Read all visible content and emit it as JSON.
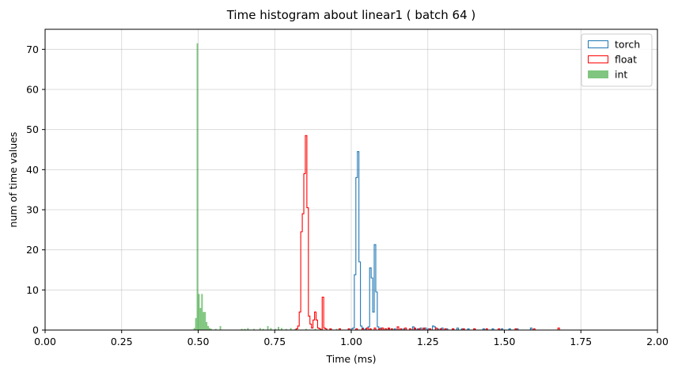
{
  "chart_data": {
    "type": "histogram",
    "title": "Time histogram about linear1 ( batch 64 )",
    "xlabel": "Time (ms)",
    "ylabel": "num of time values",
    "xlim": [
      0,
      2
    ],
    "ylim": [
      0,
      75
    ],
    "xticks": [
      "0.00",
      "0.25",
      "0.50",
      "0.75",
      "1.00",
      "1.25",
      "1.50",
      "1.75",
      "2.00"
    ],
    "xtick_values": [
      0,
      0.25,
      0.5,
      0.75,
      1.0,
      1.25,
      1.5,
      1.75,
      2.0
    ],
    "yticks": [
      "0",
      "10",
      "20",
      "30",
      "40",
      "50",
      "60",
      "70"
    ],
    "ytick_values": [
      0,
      10,
      20,
      30,
      40,
      50,
      60,
      70
    ],
    "grid": true,
    "legend_position": "top-right",
    "series": [
      {
        "name": "torch",
        "style": "step",
        "color": "#1f77b4",
        "bins": [
          [
            1.0,
            1.005,
            0.3
          ],
          [
            1.005,
            1.01,
            0.5
          ],
          [
            1.01,
            1.015,
            13.8
          ],
          [
            1.015,
            1.02,
            38.0
          ],
          [
            1.02,
            1.025,
            44.5
          ],
          [
            1.025,
            1.03,
            17.0
          ],
          [
            1.03,
            1.035,
            1.0
          ],
          [
            1.035,
            1.04,
            0.5
          ],
          [
            1.04,
            1.045,
            0.0
          ],
          [
            1.045,
            1.05,
            0.3
          ],
          [
            1.05,
            1.055,
            0.5
          ],
          [
            1.055,
            1.06,
            0.8
          ],
          [
            1.06,
            1.065,
            15.5
          ],
          [
            1.065,
            1.07,
            13.0
          ],
          [
            1.07,
            1.075,
            4.5
          ],
          [
            1.075,
            1.08,
            21.3
          ],
          [
            1.08,
            1.085,
            9.5
          ],
          [
            1.085,
            1.09,
            0.8
          ],
          [
            1.09,
            1.095,
            0.3
          ],
          [
            1.095,
            1.1,
            0.5
          ],
          [
            1.12,
            1.125,
            0.3
          ],
          [
            1.14,
            1.145,
            0.3
          ],
          [
            1.17,
            1.175,
            0.3
          ],
          [
            1.2,
            1.205,
            0.8
          ],
          [
            1.205,
            1.21,
            0.3
          ],
          [
            1.215,
            1.22,
            0.3
          ],
          [
            1.225,
            1.23,
            0.5
          ],
          [
            1.235,
            1.24,
            0.3
          ],
          [
            1.24,
            1.245,
            0.5
          ],
          [
            1.25,
            1.255,
            0.3
          ],
          [
            1.265,
            1.27,
            1.0
          ],
          [
            1.27,
            1.275,
            0.8
          ],
          [
            1.28,
            1.285,
            0.3
          ],
          [
            1.295,
            1.3,
            0.5
          ],
          [
            1.31,
            1.315,
            0.3
          ],
          [
            1.33,
            1.335,
            0.3
          ],
          [
            1.345,
            1.35,
            0.5
          ],
          [
            1.36,
            1.365,
            0.3
          ],
          [
            1.38,
            1.385,
            0.3
          ],
          [
            1.4,
            1.405,
            0.3
          ],
          [
            1.43,
            1.435,
            0.3
          ],
          [
            1.46,
            1.465,
            0.3
          ],
          [
            1.49,
            1.495,
            0.3
          ],
          [
            1.515,
            1.52,
            0.3
          ],
          [
            1.54,
            1.545,
            0.3
          ],
          [
            1.585,
            1.59,
            0.5
          ]
        ]
      },
      {
        "name": "float",
        "style": "step",
        "color": "#ff0000",
        "bins": [
          [
            0.82,
            0.825,
            0.3
          ],
          [
            0.825,
            0.83,
            1.0
          ],
          [
            0.83,
            0.835,
            4.5
          ],
          [
            0.835,
            0.84,
            24.5
          ],
          [
            0.84,
            0.845,
            29.0
          ],
          [
            0.845,
            0.85,
            39.0
          ],
          [
            0.85,
            0.855,
            48.5
          ],
          [
            0.855,
            0.86,
            30.5
          ],
          [
            0.86,
            0.865,
            3.5
          ],
          [
            0.865,
            0.87,
            1.5
          ],
          [
            0.87,
            0.875,
            0.5
          ],
          [
            0.875,
            0.88,
            2.5
          ],
          [
            0.88,
            0.885,
            4.5
          ],
          [
            0.885,
            0.89,
            2.5
          ],
          [
            0.89,
            0.895,
            0.5
          ],
          [
            0.895,
            0.9,
            0.3
          ],
          [
            0.9,
            0.905,
            0.0
          ],
          [
            0.905,
            0.91,
            8.2
          ],
          [
            0.91,
            0.915,
            0.5
          ],
          [
            0.915,
            0.92,
            0.3
          ],
          [
            0.92,
            0.925,
            0.0
          ],
          [
            0.93,
            0.935,
            0.3
          ],
          [
            0.96,
            0.965,
            0.3
          ],
          [
            0.99,
            0.995,
            0.3
          ],
          [
            1.015,
            1.02,
            0.3
          ],
          [
            1.035,
            1.04,
            0.3
          ],
          [
            1.05,
            1.055,
            0.5
          ],
          [
            1.06,
            1.065,
            0.3
          ],
          [
            1.075,
            1.08,
            0.5
          ],
          [
            1.09,
            1.095,
            0.3
          ],
          [
            1.1,
            1.105,
            0.5
          ],
          [
            1.11,
            1.115,
            0.3
          ],
          [
            1.12,
            1.125,
            0.5
          ],
          [
            1.13,
            1.135,
            0.3
          ],
          [
            1.15,
            1.155,
            0.8
          ],
          [
            1.16,
            1.165,
            0.3
          ],
          [
            1.175,
            1.18,
            0.5
          ],
          [
            1.19,
            1.195,
            0.3
          ],
          [
            1.205,
            1.21,
            0.5
          ],
          [
            1.22,
            1.225,
            0.3
          ],
          [
            1.235,
            1.24,
            0.5
          ],
          [
            1.255,
            1.26,
            0.3
          ],
          [
            1.275,
            1.28,
            0.5
          ],
          [
            1.29,
            1.295,
            0.3
          ],
          [
            1.305,
            1.31,
            0.3
          ],
          [
            1.33,
            1.335,
            0.3
          ],
          [
            1.365,
            1.37,
            0.3
          ],
          [
            1.4,
            1.405,
            0.3
          ],
          [
            1.44,
            1.445,
            0.3
          ],
          [
            1.48,
            1.485,
            0.3
          ],
          [
            1.535,
            1.54,
            0.3
          ],
          [
            1.595,
            1.6,
            0.3
          ],
          [
            1.675,
            1.68,
            0.5
          ]
        ]
      },
      {
        "name": "int",
        "style": "filled",
        "color": "#2ca02c",
        "opacity": 0.6,
        "bins": [
          [
            0.485,
            0.49,
            0.5
          ],
          [
            0.49,
            0.495,
            3.0
          ],
          [
            0.495,
            0.5,
            71.5
          ],
          [
            0.5,
            0.505,
            9.0
          ],
          [
            0.505,
            0.51,
            5.5
          ],
          [
            0.51,
            0.515,
            9.0
          ],
          [
            0.515,
            0.52,
            4.5
          ],
          [
            0.52,
            0.525,
            4.5
          ],
          [
            0.525,
            0.53,
            2.0
          ],
          [
            0.53,
            0.535,
            1.0
          ],
          [
            0.535,
            0.54,
            0.5
          ],
          [
            0.54,
            0.545,
            0.3
          ],
          [
            0.555,
            0.56,
            0.3
          ],
          [
            0.57,
            0.575,
            1.0
          ],
          [
            0.64,
            0.645,
            0.3
          ],
          [
            0.65,
            0.655,
            0.3
          ],
          [
            0.66,
            0.665,
            0.5
          ],
          [
            0.68,
            0.685,
            0.3
          ],
          [
            0.7,
            0.705,
            0.5
          ],
          [
            0.71,
            0.715,
            0.3
          ],
          [
            0.725,
            0.73,
            1.0
          ],
          [
            0.735,
            0.74,
            0.5
          ],
          [
            0.75,
            0.755,
            0.3
          ],
          [
            0.76,
            0.765,
            0.8
          ],
          [
            0.77,
            0.775,
            0.5
          ],
          [
            0.785,
            0.79,
            0.3
          ],
          [
            0.8,
            0.805,
            0.5
          ],
          [
            0.815,
            0.82,
            0.3
          ],
          [
            0.85,
            0.855,
            0.3
          ],
          [
            0.88,
            0.885,
            0.3
          ],
          [
            0.9,
            0.905,
            0.3
          ],
          [
            0.95,
            0.955,
            0.3
          ]
        ]
      }
    ]
  }
}
